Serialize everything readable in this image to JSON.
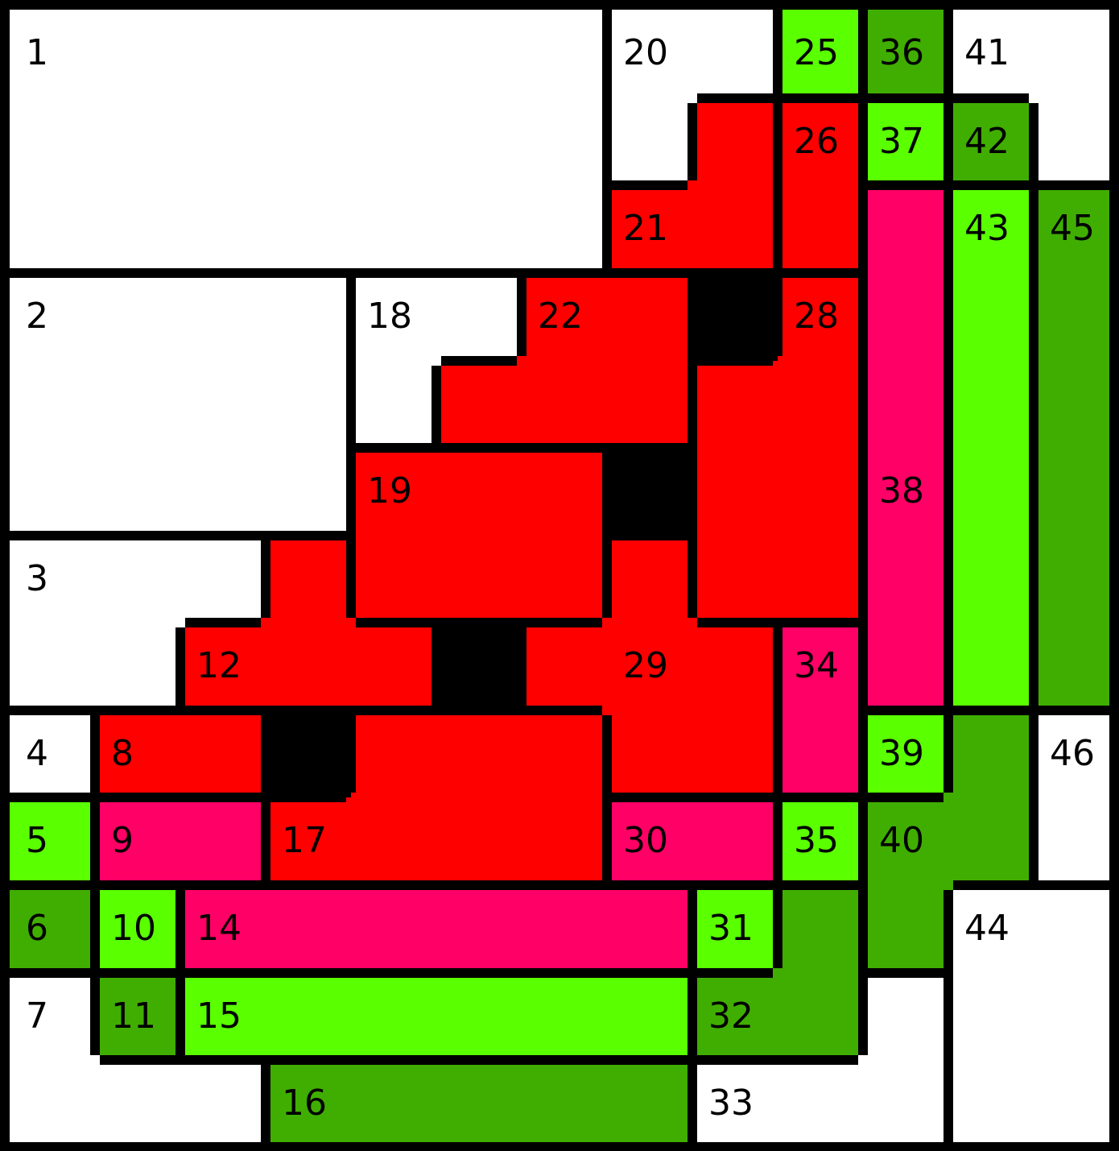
{
  "palette": {
    "white": "#ffffff",
    "red": "#ff0000",
    "pink": "#ff0066",
    "light_green": "#5aff00",
    "dark_green": "#40ae00",
    "border": "#000000"
  },
  "regions": [
    {
      "label": "1",
      "color": "white"
    },
    {
      "label": "2",
      "color": "white"
    },
    {
      "label": "3",
      "color": "white"
    },
    {
      "label": "4",
      "color": "white"
    },
    {
      "label": "5",
      "color": "light_green"
    },
    {
      "label": "6",
      "color": "dark_green"
    },
    {
      "label": "7",
      "color": "white"
    },
    {
      "label": "8",
      "color": "red"
    },
    {
      "label": "9",
      "color": "pink"
    },
    {
      "label": "10",
      "color": "light_green"
    },
    {
      "label": "11",
      "color": "dark_green"
    },
    {
      "label": "12",
      "color": "red"
    },
    {
      "label": "14",
      "color": "pink"
    },
    {
      "label": "15",
      "color": "light_green"
    },
    {
      "label": "16",
      "color": "dark_green"
    },
    {
      "label": "17",
      "color": "red"
    },
    {
      "label": "18",
      "color": "white"
    },
    {
      "label": "19",
      "color": "red"
    },
    {
      "label": "20",
      "color": "white"
    },
    {
      "label": "21",
      "color": "red"
    },
    {
      "label": "22",
      "color": "red"
    },
    {
      "label": "25",
      "color": "light_green"
    },
    {
      "label": "26",
      "color": "red"
    },
    {
      "label": "28",
      "color": "red"
    },
    {
      "label": "29",
      "color": "red"
    },
    {
      "label": "30",
      "color": "pink"
    },
    {
      "label": "31",
      "color": "light_green"
    },
    {
      "label": "32",
      "color": "dark_green"
    },
    {
      "label": "33",
      "color": "white"
    },
    {
      "label": "34",
      "color": "pink"
    },
    {
      "label": "35",
      "color": "light_green"
    },
    {
      "label": "36",
      "color": "dark_green"
    },
    {
      "label": "37",
      "color": "light_green"
    },
    {
      "label": "38",
      "color": "pink"
    },
    {
      "label": "39",
      "color": "light_green"
    },
    {
      "label": "40",
      "color": "dark_green"
    },
    {
      "label": "41",
      "color": "white"
    },
    {
      "label": "42",
      "color": "dark_green"
    },
    {
      "label": "43",
      "color": "light_green"
    },
    {
      "label": "44",
      "color": "white"
    },
    {
      "label": "45",
      "color": "dark_green"
    },
    {
      "label": "46",
      "color": "white"
    }
  ]
}
